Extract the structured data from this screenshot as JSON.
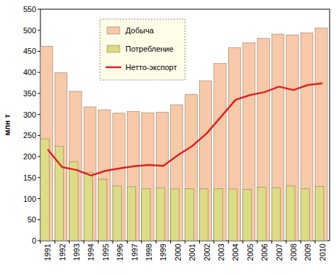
{
  "chart_data": {
    "type": "bar",
    "y_label": "млн т",
    "categories": [
      "1991",
      "1992",
      "1993",
      "1994",
      "1995",
      "1996",
      "1997",
      "1998",
      "1999",
      "2000",
      "2001",
      "2002",
      "2003",
      "2004",
      "2005",
      "2006",
      "2007",
      "2008",
      "2009",
      "2010"
    ],
    "series": [
      {
        "name": "Добыча",
        "color": "#f7c9a9",
        "values": [
          462,
          399,
          355,
          318,
          311,
          303,
          307,
          304,
          305,
          323,
          348,
          380,
          421,
          459,
          470,
          481,
          491,
          489,
          494,
          505
        ]
      },
      {
        "name": "Потребление",
        "color": "#dcdc84",
        "values": [
          242,
          224,
          188,
          162,
          146,
          130,
          128,
          124,
          126,
          123,
          124,
          123,
          124,
          123,
          122,
          127,
          126,
          131,
          124,
          129
        ]
      },
      {
        "name": "Нетто-экспорт",
        "type": "line",
        "color": "#e02020",
        "values": [
          217,
          175,
          168,
          155,
          166,
          172,
          177,
          180,
          178,
          203,
          225,
          255,
          295,
          335,
          346,
          353,
          366,
          358,
          370,
          374
        ]
      }
    ],
    "ylim": [
      0,
      550
    ],
    "yticks": [
      0,
      50,
      100,
      150,
      200,
      250,
      300,
      350,
      400,
      450,
      500,
      550
    ],
    "grid": false,
    "legend": "top-left"
  }
}
